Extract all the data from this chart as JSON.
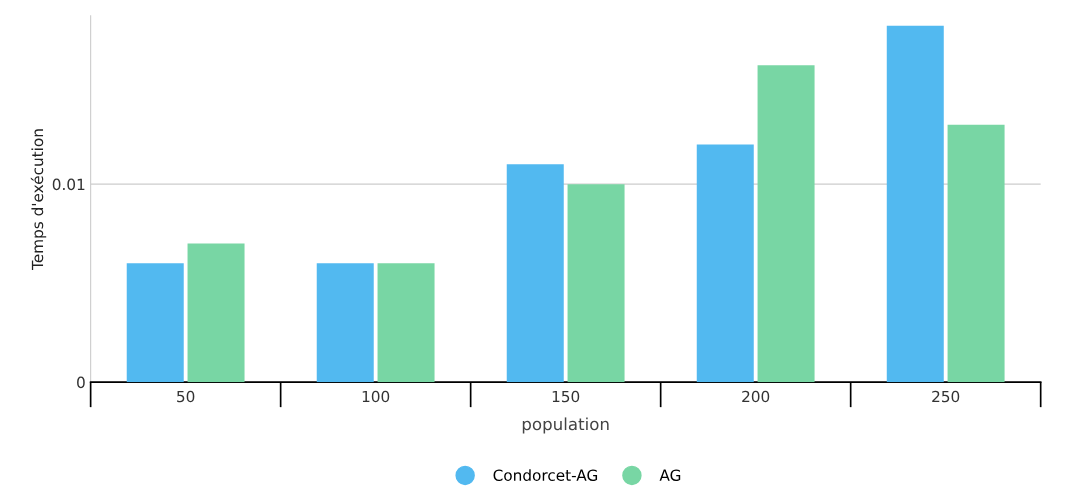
{
  "chart_data": {
    "type": "bar",
    "xlabel": "population",
    "ylabel": "Temps d'exécution",
    "categories": [
      "50",
      "100",
      "150",
      "200",
      "250"
    ],
    "series": [
      {
        "name": "Condorcet-AG",
        "color": "#52b9f0",
        "values": [
          0.006,
          0.006,
          0.011,
          0.012,
          0.018
        ]
      },
      {
        "name": "AG",
        "color": "#78d6a4",
        "values": [
          0.007,
          0.006,
          0.01,
          0.016,
          0.013
        ]
      }
    ],
    "ylim": [
      0,
      0.0185
    ],
    "yticks": [
      0,
      0.01
    ],
    "grid": "y",
    "legend": "bottom"
  }
}
